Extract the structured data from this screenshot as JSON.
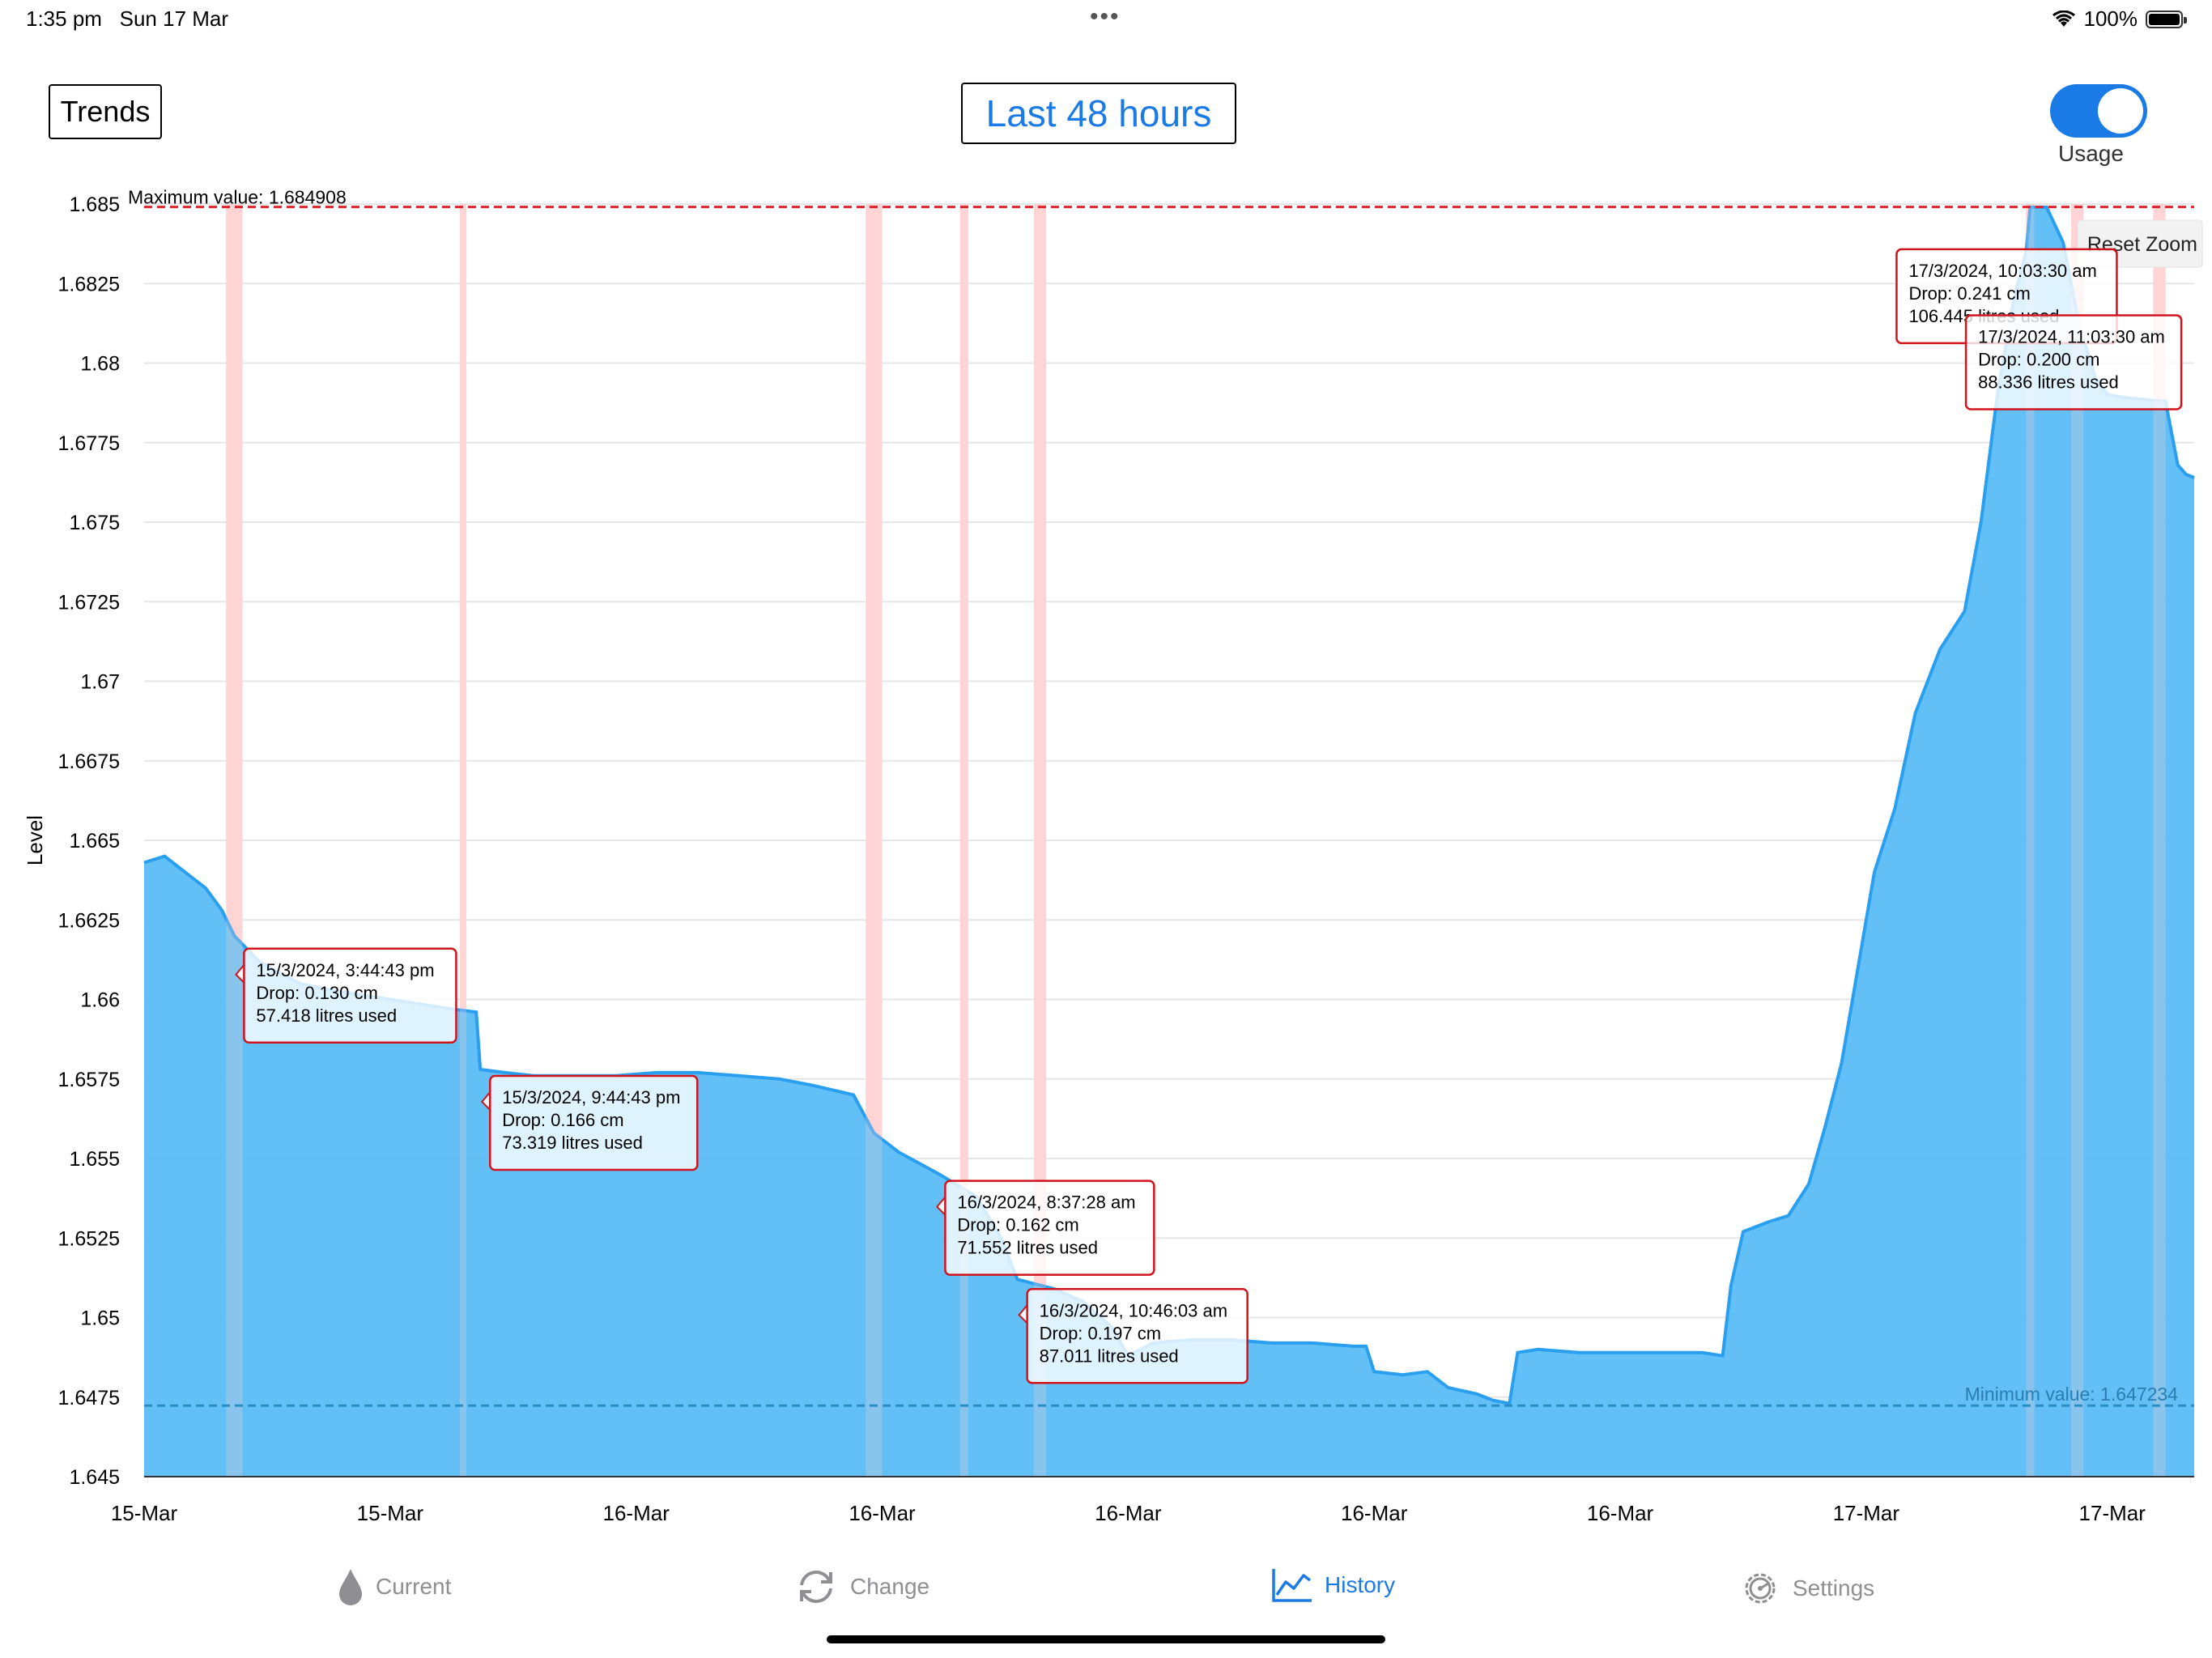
{
  "status_bar": {
    "time": "1:35 pm",
    "date": "Sun 17 Mar",
    "battery": "100%"
  },
  "header": {
    "trends_label": "Trends",
    "range_label": "Last 48 hours",
    "toggle_label": "Usage",
    "toggle_on": true
  },
  "chart": {
    "reset_zoom": "Reset Zoom"
  },
  "tabs": [
    {
      "label": "Current",
      "icon": "drop-icon"
    },
    {
      "label": "Change",
      "icon": "refresh-icon"
    },
    {
      "label": "History",
      "icon": "line-chart-icon",
      "active": true
    },
    {
      "label": "Settings",
      "icon": "gear-icon"
    }
  ],
  "colors": {
    "accent": "#1a7ae6",
    "area": "#5cbdf7",
    "line": "#2a9ff0",
    "max_line": "#e0202a",
    "min_line": "#2a8ec4",
    "band": "#ffd5d5"
  },
  "chart_data": {
    "type": "area",
    "ylabel": "Level",
    "xlabel": "",
    "ylim": [
      1.645,
      1.685
    ],
    "yticks": [
      "1.685",
      "1.6825",
      "1.68",
      "1.6775",
      "1.675",
      "1.6725",
      "1.67",
      "1.6675",
      "1.665",
      "1.6625",
      "1.66",
      "1.6575",
      "1.655",
      "1.6525",
      "1.65",
      "1.6475",
      "1.645"
    ],
    "xticks": [
      "15-Mar",
      "15-Mar",
      "16-Mar",
      "16-Mar",
      "16-Mar",
      "16-Mar",
      "16-Mar",
      "17-Mar",
      "17-Mar"
    ],
    "xlim": [
      0,
      48
    ],
    "grid": true,
    "max_label": "Maximum value: 1.684908",
    "max_value": 1.684908,
    "min_label": "Minimum value: 1.647234",
    "min_value": 1.647234,
    "series": [
      {
        "values": [
          [
            0,
            1.6643
          ],
          [
            0.5,
            1.6645
          ],
          [
            1,
            1.664
          ],
          [
            1.5,
            1.6635
          ],
          [
            1.9,
            1.6628
          ],
          [
            2.2,
            1.662
          ],
          [
            2.5,
            1.6616
          ],
          [
            2.8,
            1.6612
          ],
          [
            3.2,
            1.6609
          ],
          [
            3.8,
            1.6605
          ],
          [
            4.5,
            1.6603
          ],
          [
            5.5,
            1.6601
          ],
          [
            6.5,
            1.6599
          ],
          [
            7.5,
            1.6597
          ],
          [
            8.1,
            1.6596
          ],
          [
            8.2,
            1.6578
          ],
          [
            8.8,
            1.6577
          ],
          [
            9.5,
            1.6576
          ],
          [
            10.5,
            1.6576
          ],
          [
            11.5,
            1.6576
          ],
          [
            12.5,
            1.6577
          ],
          [
            13.5,
            1.6577
          ],
          [
            14.5,
            1.6576
          ],
          [
            15.5,
            1.6575
          ],
          [
            16.3,
            1.6573
          ],
          [
            17.3,
            1.657
          ],
          [
            17.8,
            1.6558
          ],
          [
            18.4,
            1.6552
          ],
          [
            19.4,
            1.6545
          ],
          [
            20.3,
            1.6538
          ],
          [
            20.9,
            1.6525
          ],
          [
            21.3,
            1.6512
          ],
          [
            22.2,
            1.6509
          ],
          [
            22.9,
            1.6505
          ],
          [
            23.6,
            1.6497
          ],
          [
            24.0,
            1.6488
          ],
          [
            24.6,
            1.6492
          ],
          [
            25.5,
            1.6493
          ],
          [
            26.5,
            1.6493
          ],
          [
            27.5,
            1.6492
          ],
          [
            28.5,
            1.6492
          ],
          [
            29.5,
            1.6491
          ],
          [
            29.8,
            1.6491
          ],
          [
            30.0,
            1.6483
          ],
          [
            30.7,
            1.6482
          ],
          [
            31.3,
            1.6483
          ],
          [
            31.8,
            1.6478
          ],
          [
            32.5,
            1.6476
          ],
          [
            32.9,
            1.6474
          ],
          [
            33.3,
            1.6473
          ],
          [
            33.5,
            1.6489
          ],
          [
            34.0,
            1.649
          ],
          [
            35.0,
            1.6489
          ],
          [
            36.0,
            1.6489
          ],
          [
            37.0,
            1.6489
          ],
          [
            38.0,
            1.6489
          ],
          [
            38.5,
            1.6488
          ],
          [
            38.7,
            1.651
          ],
          [
            39.0,
            1.6527
          ],
          [
            39.6,
            1.653
          ],
          [
            40.1,
            1.6532
          ],
          [
            40.6,
            1.6542
          ],
          [
            41.0,
            1.656
          ],
          [
            41.4,
            1.658
          ],
          [
            41.8,
            1.661
          ],
          [
            42.2,
            1.664
          ],
          [
            42.7,
            1.666
          ],
          [
            43.2,
            1.669
          ],
          [
            43.8,
            1.671
          ],
          [
            44.4,
            1.6722
          ],
          [
            44.8,
            1.675
          ],
          [
            45.2,
            1.679
          ],
          [
            45.6,
            1.682
          ],
          [
            45.9,
            1.6835
          ],
          [
            46.0,
            1.6849
          ],
          [
            46.4,
            1.6849
          ],
          [
            46.8,
            1.6838
          ],
          [
            47.2,
            1.6812
          ],
          [
            47.6,
            1.6795
          ],
          [
            47.9,
            1.679
          ],
          [
            48.4,
            1.6789
          ],
          [
            49.3,
            1.6788
          ],
          [
            49.6,
            1.6768
          ],
          [
            49.8,
            1.6765
          ],
          [
            50.0,
            1.6764
          ]
        ]
      }
    ],
    "usage_bands": [
      {
        "start": 2.0,
        "end": 2.4
      },
      {
        "start": 7.7,
        "end": 7.85
      },
      {
        "start": 17.6,
        "end": 18.0
      },
      {
        "start": 19.9,
        "end": 20.1
      },
      {
        "start": 21.7,
        "end": 22.0
      },
      {
        "start": 45.9,
        "end": 46.1
      },
      {
        "start": 47.0,
        "end": 47.3
      },
      {
        "start": 49.0,
        "end": 49.3
      }
    ],
    "tooltips": [
      {
        "lines": [
          "15/3/2024, 3:44:43 pm",
          "Drop: 0.130 cm",
          "57.418 litres used"
        ],
        "x": 2.2,
        "y": 1.6618
      },
      {
        "lines": [
          "15/3/2024, 9:44:43 pm",
          "Drop: 0.166 cm",
          "73.319 litres used"
        ],
        "x": 8.2,
        "y": 1.6578
      },
      {
        "lines": [
          "16/3/2024, 8:37:28 am",
          "Drop: 0.162 cm",
          "71.552 litres used"
        ],
        "x": 19.3,
        "y": 1.6545
      },
      {
        "lines": [
          "16/3/2024, 10:46:03 am",
          "Drop: 0.197 cm",
          "87.011 litres used"
        ],
        "x": 21.3,
        "y": 1.6511
      },
      {
        "lines": [
          "17/3/2024, 10:03:30 am",
          "Drop: 0.241 cm",
          "106.445 litres used"
        ],
        "x": 46.0,
        "y": 1.6849
      },
      {
        "lines": [
          "17/3/2024, 11:03:30 am",
          "Drop: 0.200 cm",
          "88.336 litres used"
        ],
        "x": 47.0,
        "y": 1.682
      }
    ]
  }
}
